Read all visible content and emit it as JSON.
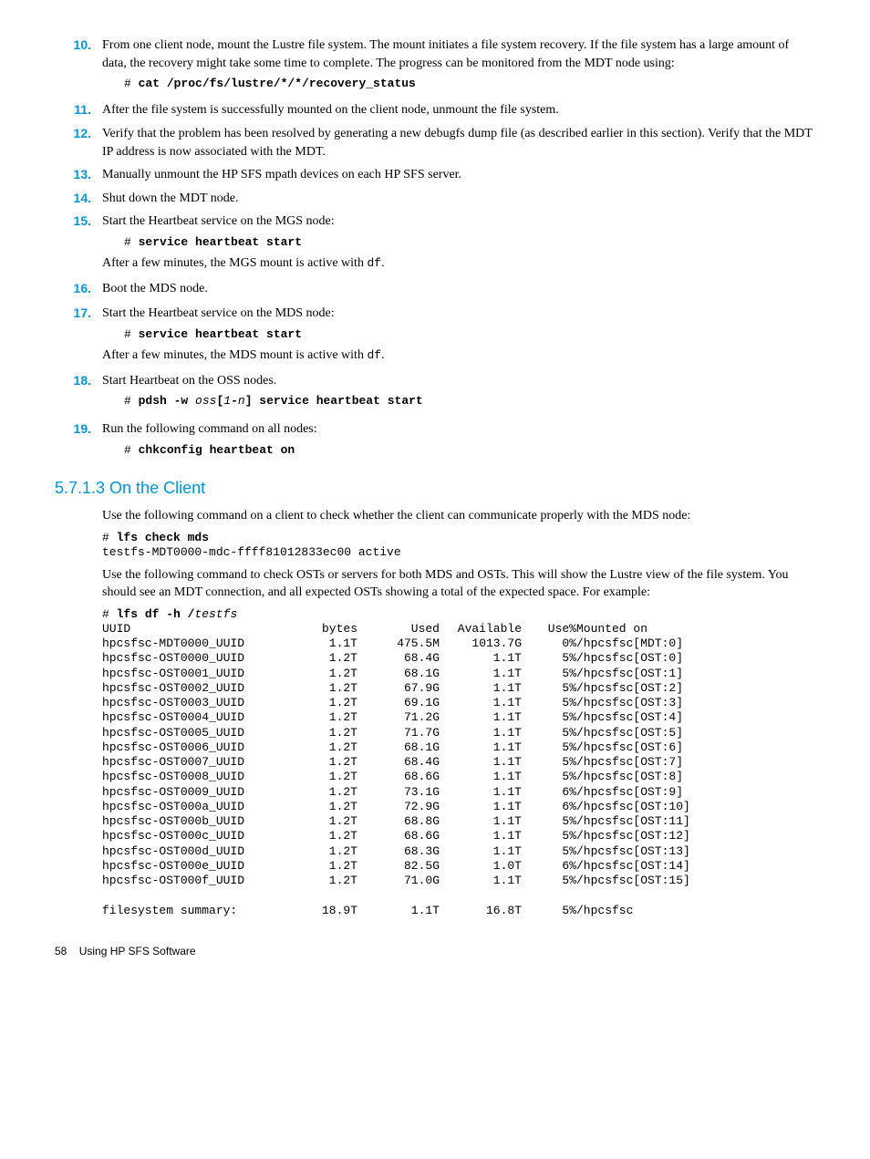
{
  "steps": {
    "s10": {
      "num": "10.",
      "text": "From one client node, mount the Lustre file system. The mount initiates a file system recovery. If the file system has a large amount of data, the recovery might take some time to complete. The progress can be monitored from the MDT node using:",
      "code_prefix": "# ",
      "code": "cat /proc/fs/lustre/*/*/recovery_status"
    },
    "s11": {
      "num": "11.",
      "text": "After the file system is successfully mounted on the client node, unmount the file system."
    },
    "s12": {
      "num": "12.",
      "text": "Verify that the problem has been resolved by generating a new debugfs dump file (as described earlier in this section). Verify that the MDT IP address is now associated with the MDT."
    },
    "s13": {
      "num": "13.",
      "text": "Manually unmount the HP SFS mpath devices on each HP SFS server."
    },
    "s14": {
      "num": "14.",
      "text": "Shut down the MDT node."
    },
    "s15": {
      "num": "15.",
      "text": "Start the Heartbeat service on the MGS node:",
      "code_prefix": "# ",
      "code": "service heartbeat start",
      "after_text_a": "After a few minutes, the MGS mount is active with ",
      "after_code": "df",
      "after_text_b": "."
    },
    "s16": {
      "num": "16.",
      "text": "Boot the MDS node."
    },
    "s17": {
      "num": "17.",
      "text": "Start the Heartbeat service on the MDS node:",
      "code_prefix": "# ",
      "code": "service heartbeat start",
      "after_text_a": "After a few minutes, the MDS mount is active with ",
      "after_code": "df",
      "after_text_b": "."
    },
    "s18": {
      "num": "18.",
      "text": "Start Heartbeat on the OSS nodes.",
      "code_prefix": "# ",
      "code_a": "pdsh -w",
      "code_italic": " oss",
      "code_b": "[",
      "code_italic2": "1",
      "code_c": "-",
      "code_italic3": "n",
      "code_d": "] service heartbeat start"
    },
    "s19": {
      "num": "19.",
      "text": "Run the following command on all nodes:",
      "code_prefix": "# ",
      "code": "chkconfig heartbeat on"
    }
  },
  "section": {
    "heading": "5.7.1.3 On the Client",
    "para1": "Use the following command on a client to check whether the client can communicate properly with the MDS node:",
    "cmd1_prefix": "# ",
    "cmd1": "lfs check mds",
    "cmd1_out": "testfs-MDT0000-mdc-ffff81012833ec00 active",
    "para2": "Use the following command to check OSTs or servers for both MDS and OSTs. This will show the Lustre view of the file system. You should see an MDT connection, and all expected OSTs showing a total of the expected space. For example:",
    "cmd2_prefix": "# ",
    "cmd2": "lfs df -h /",
    "cmd2_italic": "testfs"
  },
  "table": {
    "header": {
      "uuid": "UUID",
      "bytes": "bytes",
      "used": "Used",
      "avail": "Available",
      "usep": "Use%",
      "mount": "Mounted on"
    },
    "rows": [
      {
        "uuid": "hpcsfsc-MDT0000_UUID",
        "bytes": "1.1T",
        "used": "475.5M",
        "avail": "1013.7G",
        "usep": "0%",
        "mount": "/hpcsfsc[MDT:0]"
      },
      {
        "uuid": "hpcsfsc-OST0000_UUID",
        "bytes": "1.2T",
        "used": "68.4G",
        "avail": "1.1T",
        "usep": "5%",
        "mount": "/hpcsfsc[OST:0]"
      },
      {
        "uuid": "hpcsfsc-OST0001_UUID",
        "bytes": "1.2T",
        "used": "68.1G",
        "avail": "1.1T",
        "usep": "5%",
        "mount": "/hpcsfsc[OST:1]"
      },
      {
        "uuid": "hpcsfsc-OST0002_UUID",
        "bytes": "1.2T",
        "used": "67.9G",
        "avail": "1.1T",
        "usep": "5%",
        "mount": "/hpcsfsc[OST:2]"
      },
      {
        "uuid": "hpcsfsc-OST0003_UUID",
        "bytes": "1.2T",
        "used": "69.1G",
        "avail": "1.1T",
        "usep": "5%",
        "mount": "/hpcsfsc[OST:3]"
      },
      {
        "uuid": "hpcsfsc-OST0004_UUID",
        "bytes": "1.2T",
        "used": "71.2G",
        "avail": "1.1T",
        "usep": "5%",
        "mount": "/hpcsfsc[OST:4]"
      },
      {
        "uuid": "hpcsfsc-OST0005_UUID",
        "bytes": "1.2T",
        "used": "71.7G",
        "avail": "1.1T",
        "usep": "5%",
        "mount": "/hpcsfsc[OST:5]"
      },
      {
        "uuid": "hpcsfsc-OST0006_UUID",
        "bytes": "1.2T",
        "used": "68.1G",
        "avail": "1.1T",
        "usep": "5%",
        "mount": "/hpcsfsc[OST:6]"
      },
      {
        "uuid": "hpcsfsc-OST0007_UUID",
        "bytes": "1.2T",
        "used": "68.4G",
        "avail": "1.1T",
        "usep": "5%",
        "mount": "/hpcsfsc[OST:7]"
      },
      {
        "uuid": "hpcsfsc-OST0008_UUID",
        "bytes": "1.2T",
        "used": "68.6G",
        "avail": "1.1T",
        "usep": "5%",
        "mount": "/hpcsfsc[OST:8]"
      },
      {
        "uuid": "hpcsfsc-OST0009_UUID",
        "bytes": "1.2T",
        "used": "73.1G",
        "avail": "1.1T",
        "usep": "6%",
        "mount": "/hpcsfsc[OST:9]"
      },
      {
        "uuid": "hpcsfsc-OST000a_UUID",
        "bytes": "1.2T",
        "used": "72.9G",
        "avail": "1.1T",
        "usep": "6%",
        "mount": "/hpcsfsc[OST:10]"
      },
      {
        "uuid": "hpcsfsc-OST000b_UUID",
        "bytes": "1.2T",
        "used": "68.8G",
        "avail": "1.1T",
        "usep": "5%",
        "mount": "/hpcsfsc[OST:11]"
      },
      {
        "uuid": "hpcsfsc-OST000c_UUID",
        "bytes": "1.2T",
        "used": "68.6G",
        "avail": "1.1T",
        "usep": "5%",
        "mount": "/hpcsfsc[OST:12]"
      },
      {
        "uuid": "hpcsfsc-OST000d_UUID",
        "bytes": "1.2T",
        "used": "68.3G",
        "avail": "1.1T",
        "usep": "5%",
        "mount": "/hpcsfsc[OST:13]"
      },
      {
        "uuid": "hpcsfsc-OST000e_UUID",
        "bytes": "1.2T",
        "used": "82.5G",
        "avail": "1.0T",
        "usep": "6%",
        "mount": "/hpcsfsc[OST:14]"
      },
      {
        "uuid": "hpcsfsc-OST000f_UUID",
        "bytes": "1.2T",
        "used": "71.0G",
        "avail": "1.1T",
        "usep": "5%",
        "mount": "/hpcsfsc[OST:15]"
      }
    ],
    "summary": {
      "uuid": "filesystem summary:",
      "bytes": "18.9T",
      "used": "1.1T",
      "avail": "16.8T",
      "usep": "5%",
      "mount": "/hpcsfsc"
    }
  },
  "footer": {
    "page": "58",
    "title": "Using HP SFS Software"
  }
}
